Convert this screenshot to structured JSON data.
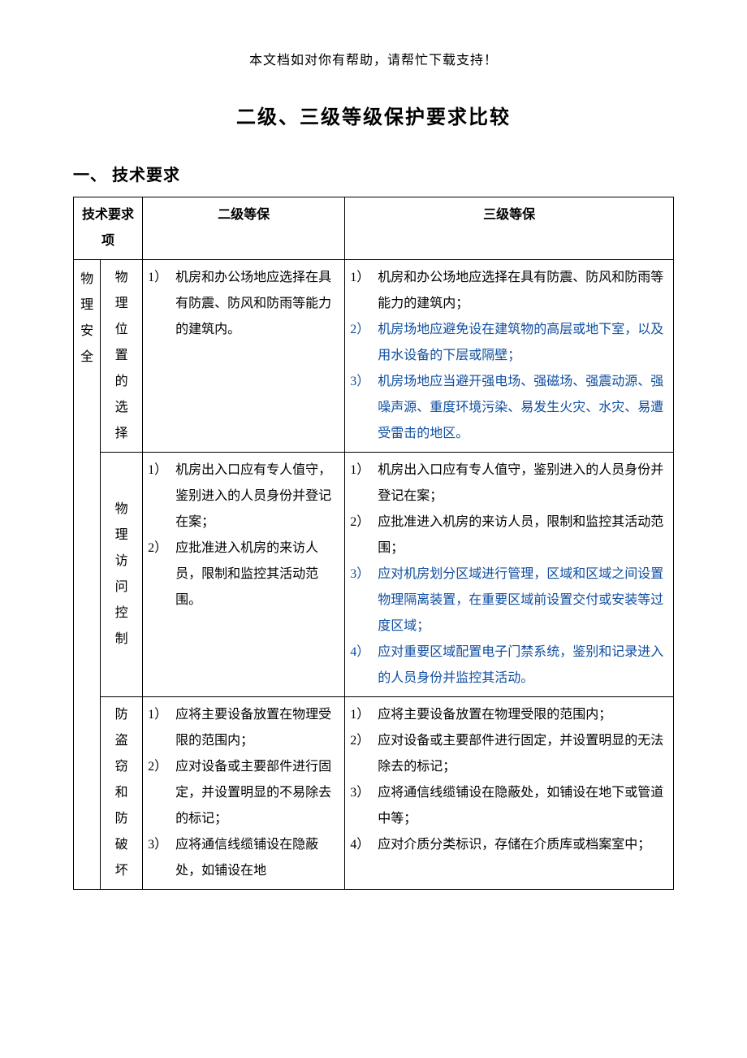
{
  "colors": {
    "text": "#000000",
    "highlight": "#0f4ea0",
    "background": "#ffffff",
    "border": "#000000"
  },
  "header_note": "本文档如对你有帮助，请帮忙下载支持！",
  "doc_title": "二级、三级等级保护要求比较",
  "section1_heading": "一、 技术要求",
  "table": {
    "headers": {
      "req_item": "技术要求项",
      "level2": "二级等保",
      "level3": "三级等保"
    },
    "category": "物理安全",
    "rows": [
      {
        "sub": "物理位置的选择",
        "l2": [
          {
            "n": "1）",
            "t": "机房和办公场地应选择在具有防震、防风和防雨等能力的建筑内。",
            "hl": false
          }
        ],
        "l3": [
          {
            "n": "1）",
            "t": "机房和办公场地应选择在具有防震、防风和防雨等能力的建筑内；",
            "hl": false
          },
          {
            "n": "2）",
            "t": "机房场地应避免设在建筑物的高层或地下室，以及用水设备的下层或隔壁；",
            "hl": true
          },
          {
            "n": "3）",
            "t": "机房场地应当避开强电场、强磁场、强震动源、强噪声源、重度环境污染、易发生火灾、水灾、易遭受雷击的地区。",
            "hl": true
          }
        ]
      },
      {
        "sub": "物理访问控制",
        "l2": [
          {
            "n": "1）",
            "t": "机房出入口应有专人值守，鉴别进入的人员身份并登记在案；",
            "hl": false
          },
          {
            "n": "2）",
            "t": "应批准进入机房的来访人员，限制和监控其活动范围。",
            "hl": false
          }
        ],
        "l3": [
          {
            "n": "1）",
            "t": "机房出入口应有专人值守，鉴别进入的人员身份并登记在案；",
            "hl": false
          },
          {
            "n": "2）",
            "t": "应批准进入机房的来访人员，限制和监控其活动范围；",
            "hl": false
          },
          {
            "n": "3）",
            "t": "应对机房划分区域进行管理，区域和区域之间设置物理隔离装置，在重要区域前设置交付或安装等过度区域；",
            "hl": true
          },
          {
            "n": "4）",
            "t": "应对重要区域配置电子门禁系统，鉴别和记录进入的人员身份并监控其活动。",
            "hl": true
          }
        ]
      },
      {
        "sub": "防盗窃和防破坏",
        "l2": [
          {
            "n": "1）",
            "t": "应将主要设备放置在物理受限的范围内；",
            "hl": false
          },
          {
            "n": "2）",
            "t": "应对设备或主要部件进行固定，并设置明显的不易除去的标记；",
            "hl": false
          },
          {
            "n": "3）",
            "t": "应将通信线缆铺设在隐蔽处，如铺设在地",
            "hl": false
          }
        ],
        "l3": [
          {
            "n": "1）",
            "t": "应将主要设备放置在物理受限的范围内；",
            "hl": false
          },
          {
            "n": "2）",
            "t": "应对设备或主要部件进行固定，并设置明显的无法除去的标记；",
            "hl": false
          },
          {
            "n": "3）",
            "t": "应将通信线缆铺设在隐蔽处，如铺设在地下或管道中等；",
            "hl": false
          },
          {
            "n": "4）",
            "t": "应对介质分类标识，存储在介质库或档案室中；",
            "hl": false
          }
        ]
      }
    ]
  }
}
